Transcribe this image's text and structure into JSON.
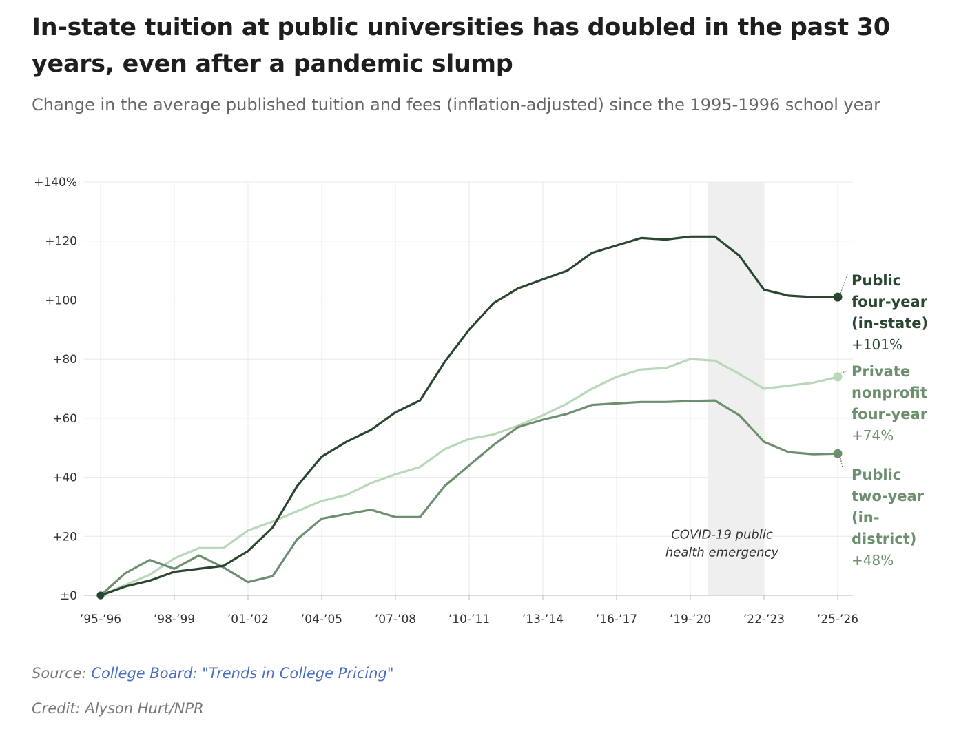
{
  "title": "In-state tuition at public universities has doubled in the past 30 years, even after a pandemic slump",
  "subtitle": "Change in the average published tuition and fees (inflation-adjusted) since the 1995-1996 school year",
  "source_prefix": "Source:",
  "source_link": "College Board: \"Trends in College Pricing\"",
  "credit": "Credit: Alyson Hurt/NPR",
  "chart_data": {
    "type": "line",
    "x_labels": [
      "’95-’96",
      "",
      "",
      "’98-’99",
      "",
      "",
      "’01-’02",
      "",
      "",
      "’04-’05",
      "",
      "",
      "’07-’08",
      "",
      "",
      "’10-’11",
      "",
      "",
      "’13-’14",
      "",
      "",
      "’16-’17",
      "",
      "",
      "’19-’20",
      "",
      "",
      "’22-’23",
      "",
      "",
      "’25-’26"
    ],
    "y_ticks": [
      0,
      20,
      40,
      60,
      80,
      100,
      120,
      140
    ],
    "y_tick_labels": [
      "±0",
      "+20",
      "+40",
      "+60",
      "+80",
      "+100",
      "+120",
      "+140%"
    ],
    "ylim": [
      0,
      140
    ],
    "grid": true,
    "shaded_region": {
      "from": "2020-21",
      "to": "2022-23",
      "label_line1": "COVID-19 public",
      "label_line2": "health emergency"
    },
    "series": [
      {
        "name": "Public four-year (in-state)",
        "label_lines": [
          "Public",
          "four-year",
          "(in-state)"
        ],
        "end_label": "+101%",
        "color": "#2b4630",
        "values": [
          0,
          3,
          5,
          8,
          9,
          10,
          15,
          23,
          37,
          47,
          52,
          56,
          62,
          66,
          79,
          90,
          99,
          104,
          107,
          110,
          116,
          118.5,
          121,
          120.5,
          121.5,
          121.5,
          115,
          103.5,
          101.5,
          101,
          101
        ]
      },
      {
        "name": "Private nonprofit four-year",
        "label_lines": [
          "Private",
          "nonprofit",
          "four-year"
        ],
        "end_label": "+74%",
        "color": "#b9d7b9",
        "values": [
          0,
          3.5,
          7,
          12.5,
          16,
          16,
          22,
          25,
          28.5,
          32,
          34,
          38,
          41,
          43.5,
          49.5,
          53,
          54.5,
          57.5,
          61,
          65,
          70,
          74,
          76.5,
          77,
          80,
          79.5,
          75,
          70,
          71,
          72,
          74
        ]
      },
      {
        "name": "Public two-year (in-district)",
        "label_lines": [
          "Public",
          "two-year",
          "(in-",
          "district)"
        ],
        "end_label": "+48%",
        "color": "#6d8f6f",
        "values": [
          0,
          7.5,
          12,
          9,
          13.5,
          9.5,
          4.5,
          6.5,
          19,
          26,
          27.5,
          29,
          26.5,
          26.5,
          37,
          44,
          51,
          57,
          59.5,
          61.5,
          64.5,
          65,
          65.5,
          65.5,
          65.8,
          66,
          61,
          52,
          48.5,
          47.8,
          48
        ]
      }
    ]
  }
}
